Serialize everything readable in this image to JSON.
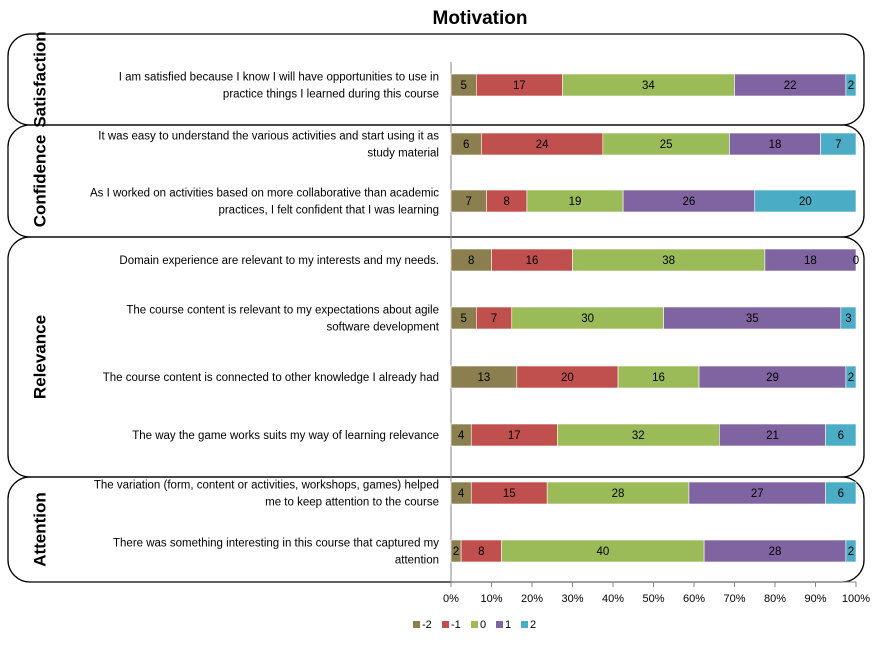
{
  "chart_data": {
    "type": "bar",
    "stacked": "percent",
    "orientation": "horizontal",
    "title": "Motivation",
    "xlabel": "",
    "ylabel": "",
    "xlim": [
      0,
      100
    ],
    "x_ticks": [
      "0%",
      "10%",
      "20%",
      "30%",
      "40%",
      "50%",
      "60%",
      "70%",
      "80%",
      "90%",
      "100%"
    ],
    "legend_position": "bottom",
    "groups": [
      {
        "name": "Satisfaction",
        "items": [
          0
        ]
      },
      {
        "name": "Confidence",
        "items": [
          1,
          2
        ]
      },
      {
        "name": "Relevance",
        "items": [
          3,
          4,
          5,
          6
        ]
      },
      {
        "name": "Attention",
        "items": [
          7,
          8
        ]
      }
    ],
    "categories": [
      [
        "I am satisfied because I know I will have opportunities to use in",
        "practice things I learned during this course"
      ],
      [
        "It was easy to understand the various activities and start using it as",
        "study material"
      ],
      [
        "As I worked on activities based on more collaborative than academic",
        "practices, I felt confident that I was learning"
      ],
      [
        "Domain experience are relevant to my interests and my needs."
      ],
      [
        "The course content is relevant to  my expectations about agile",
        "software development"
      ],
      [
        "The course content is connected to other knowledge I already had"
      ],
      [
        "The way the game works suits my way of learning relevance"
      ],
      [
        "The variation (form, content or activities, workshops, games) helped",
        "me to keep attention to the course"
      ],
      [
        "There was something interesting in this course  that captured my",
        "attention"
      ]
    ],
    "series": [
      {
        "name": "-2",
        "color": "#8b7f4f",
        "values": [
          5,
          6,
          7,
          8,
          5,
          13,
          4,
          4,
          2
        ]
      },
      {
        "name": "-1",
        "color": "#c0504d",
        "values": [
          17,
          24,
          8,
          16,
          7,
          20,
          17,
          15,
          8
        ]
      },
      {
        "name": "0",
        "color": "#9bbb59",
        "values": [
          34,
          25,
          19,
          38,
          30,
          16,
          32,
          28,
          40
        ]
      },
      {
        "name": "1",
        "color": "#8064a2",
        "values": [
          22,
          18,
          26,
          18,
          35,
          29,
          21,
          27,
          28
        ]
      },
      {
        "name": "2",
        "color": "#4bacc6",
        "values": [
          2,
          7,
          20,
          0,
          3,
          2,
          6,
          6,
          2
        ]
      }
    ]
  }
}
